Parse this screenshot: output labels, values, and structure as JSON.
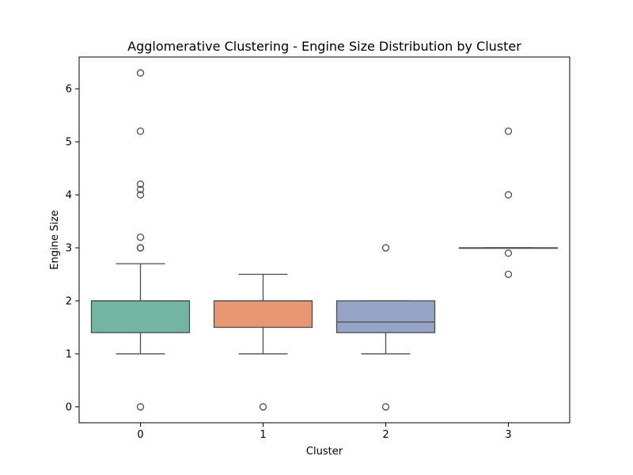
{
  "chart_data": {
    "type": "box",
    "title": "Agglomerative Clustering - Engine Size Distribution by Cluster",
    "xlabel": "Cluster",
    "ylabel": "Engine Size",
    "ylim": [
      -0.3,
      6.6
    ],
    "yticks": [
      0,
      1,
      2,
      3,
      4,
      5,
      6
    ],
    "categories": [
      "0",
      "1",
      "2",
      "3"
    ],
    "grid": false,
    "boxes": [
      {
        "category": "0",
        "color": "#72b6a1",
        "whisker_low": 1.0,
        "q1": 1.4,
        "median": 2.0,
        "q3": 2.0,
        "whisker_high": 2.7,
        "outliers": [
          0.0,
          3.0,
          3.0,
          3.2,
          4.0,
          4.1,
          4.2,
          5.2,
          6.3
        ]
      },
      {
        "category": "1",
        "color": "#e99675",
        "whisker_low": 1.0,
        "q1": 1.5,
        "median": 2.0,
        "q3": 2.0,
        "whisker_high": 2.5,
        "outliers": [
          0.0
        ]
      },
      {
        "category": "2",
        "color": "#95a3c6",
        "whisker_low": 1.0,
        "q1": 1.4,
        "median": 1.6,
        "q3": 2.0,
        "whisker_high": 2.0,
        "outliers": [
          0.0,
          3.0
        ]
      },
      {
        "category": "3",
        "color": "#c6d78e",
        "whisker_low": 3.0,
        "q1": 3.0,
        "median": 3.0,
        "q3": 3.0,
        "whisker_high": 3.0,
        "outliers": [
          2.5,
          2.9,
          4.0,
          5.2
        ]
      }
    ]
  }
}
